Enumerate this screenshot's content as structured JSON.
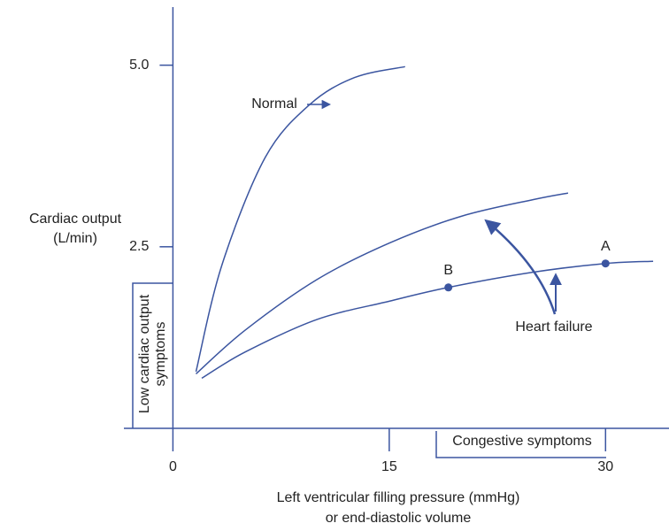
{
  "chart_data": {
    "type": "line",
    "xlabel": [
      "Left ventricular filling pressure (mmHg)",
      "or end-diastolic volume"
    ],
    "ylabel": [
      "Cardiac output",
      "(L/min)"
    ],
    "xlim": [
      -3.4,
      34.4
    ],
    "ylim": [
      0,
      5.8
    ],
    "xticks": [
      0,
      15,
      30
    ],
    "yticks": [
      2.5,
      {
        "value": 5,
        "label": "5.0"
      }
    ],
    "color": "#3b55a0",
    "series": [
      {
        "name": "Normal",
        "x": [
          1.6,
          3.4,
          6.4,
          9.5,
          12.6,
          16.1
        ],
        "values": [
          0.78,
          2.25,
          3.73,
          4.46,
          4.83,
          4.98
        ]
      },
      {
        "x": [
          1.6,
          5,
          10,
          15,
          20,
          25,
          27.4
        ],
        "values": [
          0.75,
          1.35,
          2.05,
          2.55,
          2.92,
          3.15,
          3.24
        ]
      },
      {
        "x": [
          2,
          5,
          10,
          15,
          19.1,
          25,
          30,
          33.3
        ],
        "values": [
          0.69,
          1.05,
          1.5,
          1.75,
          1.94,
          2.15,
          2.27,
          2.3
        ]
      }
    ],
    "points": [
      {
        "label": "A",
        "x": 30,
        "y": 2.27
      },
      {
        "label": "B",
        "x": 19.1,
        "y": 1.94
      }
    ],
    "annotations": [
      "Heart failure",
      [
        "Low cardiac output",
        "symptoms"
      ],
      "Congestive symptoms"
    ]
  }
}
